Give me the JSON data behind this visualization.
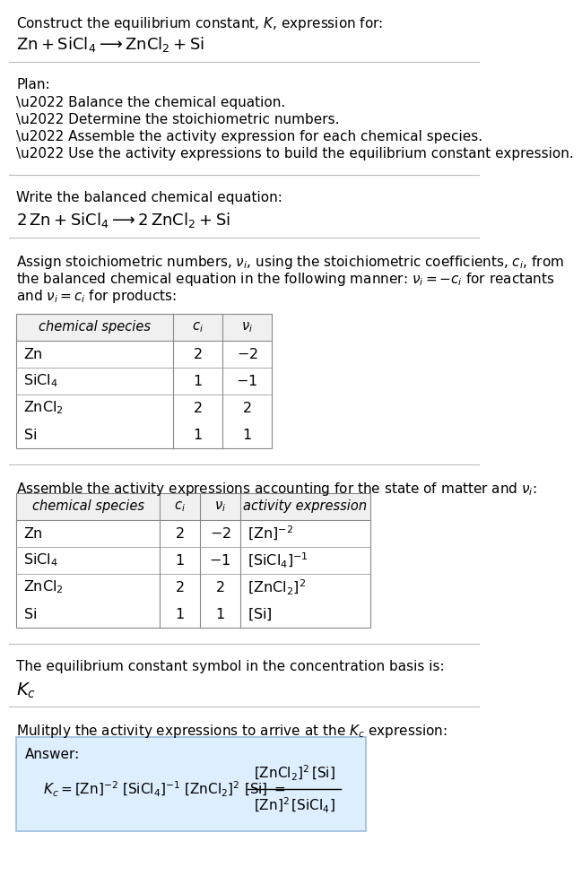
{
  "title_line1": "Construct the equilibrium constant, $K$, expression for:",
  "title_line2": "$\\mathrm{Zn + SiCl_4 \\longrightarrow ZnCl_2 + Si}$",
  "plan_header": "Plan:",
  "plan_bullets": [
    "\\u2022 Balance the chemical equation.",
    "\\u2022 Determine the stoichiometric numbers.",
    "\\u2022 Assemble the activity expression for each chemical species.",
    "\\u2022 Use the activity expressions to build the equilibrium constant expression."
  ],
  "balanced_header": "Write the balanced chemical equation:",
  "balanced_eq": "$\\mathrm{2\\,Zn + SiCl_4 \\longrightarrow 2\\,ZnCl_2 + Si}$",
  "stoich_intro": [
    "Assign stoichiometric numbers, $\\nu_i$, using the stoichiometric coefficients, $c_i$, from",
    "the balanced chemical equation in the following manner: $\\nu_i = -c_i$ for reactants",
    "and $\\nu_i = c_i$ for products:"
  ],
  "table1_headers": [
    "chemical species",
    "$c_i$",
    "$\\nu_i$"
  ],
  "table1_rows": [
    [
      "$\\mathrm{Zn}$",
      "2",
      "$-2$"
    ],
    [
      "$\\mathrm{SiCl_4}$",
      "1",
      "$-1$"
    ],
    [
      "$\\mathrm{ZnCl_2}$",
      "2",
      "2"
    ],
    [
      "$\\mathrm{Si}$",
      "1",
      "1"
    ]
  ],
  "activity_intro": "Assemble the activity expressions accounting for the state of matter and $\\nu_i$:",
  "table2_headers": [
    "chemical species",
    "$c_i$",
    "$\\nu_i$",
    "activity expression"
  ],
  "table2_rows": [
    [
      "$\\mathrm{Zn}$",
      "2",
      "$-2$",
      "$[\\mathrm{Zn}]^{-2}$"
    ],
    [
      "$\\mathrm{SiCl_4}$",
      "1",
      "$-1$",
      "$[\\mathrm{SiCl_4}]^{-1}$"
    ],
    [
      "$\\mathrm{ZnCl_2}$",
      "2",
      "2",
      "$[\\mathrm{ZnCl_2}]^{2}$"
    ],
    [
      "$\\mathrm{Si}$",
      "1",
      "1",
      "$[\\mathrm{Si}]$"
    ]
  ],
  "kc_intro": "The equilibrium constant symbol in the concentration basis is:",
  "kc_symbol": "$K_c$",
  "multiply_intro": "Mulitply the activity expressions to arrive at the $K_c$ expression:",
  "answer_label": "Answer:",
  "bg_color": "#ffffff",
  "table_header_bg": "#f0f0f0",
  "answer_box_bg": "#ddeeff",
  "answer_box_border": "#99bbdd",
  "separator_color": "#bbbbbb",
  "text_color": "#000000",
  "font_size": 11.0,
  "title2_font_size": 13.0,
  "table_header_fs": 10.5,
  "table_data_fs": 11.5,
  "answer_fs": 11.0
}
